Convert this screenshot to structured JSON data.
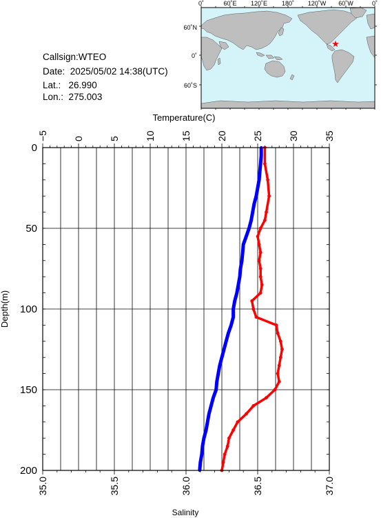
{
  "info": {
    "callsign": "Callsign:WTEO",
    "date": "Date:  2025/05/02 14:38(UTC)",
    "lat": "Lat.:   26.990",
    "lon": "Lon.:  275.003"
  },
  "map": {
    "lon_labels": [
      "0˚",
      "60˚E",
      "120˚E",
      "180˚",
      "120˚W",
      "60˚W",
      "0˚"
    ],
    "lat_labels": [
      "60˚N",
      "0˚",
      "60˚S"
    ],
    "ocean_color": "#d4f4fa",
    "land_color": "#bebebe",
    "marker_color": "#ff0000"
  },
  "chart_data": {
    "type": "line",
    "title": "",
    "xlabel_top": "Temperature(C)",
    "xlabel_bottom": "Salinity",
    "ylabel": "Depth(m)",
    "temperature_ticks": [
      "−5",
      "0",
      "5",
      "10",
      "15",
      "20",
      "25",
      "30",
      "35"
    ],
    "temperature_range": [
      -5,
      35
    ],
    "salinity_ticks": [
      "35.0",
      "35.5",
      "36.0",
      "36.5",
      "37.0"
    ],
    "salinity_range": [
      35.0,
      37.0
    ],
    "depth_ticks": [
      "0",
      "50",
      "100",
      "150",
      "200"
    ],
    "depth_range": [
      0,
      200
    ],
    "grid": true,
    "series": [
      {
        "name": "Temperature",
        "axis": "temperature",
        "color": "#0000ff",
        "depth": [
          0,
          5,
          10,
          15,
          20,
          25,
          30,
          35,
          40,
          45,
          50,
          55,
          60,
          65,
          70,
          75,
          80,
          85,
          90,
          95,
          100,
          105,
          110,
          115,
          120,
          125,
          130,
          135,
          140,
          145,
          150,
          155,
          160,
          165,
          170,
          175,
          180,
          185,
          190,
          195,
          200
        ],
        "values": [
          25.5,
          25.5,
          25.4,
          25.3,
          25.2,
          25.0,
          24.8,
          24.5,
          24.3,
          24.1,
          23.8,
          23.4,
          23.0,
          22.9,
          22.8,
          22.6,
          22.5,
          22.3,
          22.1,
          21.8,
          21.6,
          21.6,
          21.3,
          20.9,
          20.6,
          20.3,
          20.0,
          19.7,
          19.5,
          19.3,
          19.2,
          18.8,
          18.5,
          18.2,
          18.0,
          17.8,
          17.5,
          17.3,
          17.2,
          17.0,
          16.9
        ]
      },
      {
        "name": "Salinity",
        "axis": "salinity",
        "color": "#ff0000",
        "depth": [
          0,
          10,
          20,
          30,
          40,
          45,
          50,
          55,
          60,
          65,
          70,
          75,
          80,
          85,
          90,
          95,
          100,
          105,
          110,
          115,
          120,
          125,
          130,
          135,
          140,
          145,
          150,
          155,
          160,
          165,
          170,
          175,
          180,
          185,
          190,
          195,
          200
        ],
        "values": [
          36.55,
          36.55,
          36.57,
          36.58,
          36.56,
          36.55,
          36.52,
          36.5,
          36.51,
          36.52,
          36.51,
          36.52,
          36.52,
          36.53,
          36.52,
          36.46,
          36.47,
          36.49,
          36.63,
          36.64,
          36.66,
          36.67,
          36.66,
          36.65,
          36.64,
          36.65,
          36.62,
          36.56,
          36.47,
          36.42,
          36.36,
          36.33,
          36.3,
          36.29,
          36.27,
          36.26,
          36.25
        ]
      }
    ]
  }
}
